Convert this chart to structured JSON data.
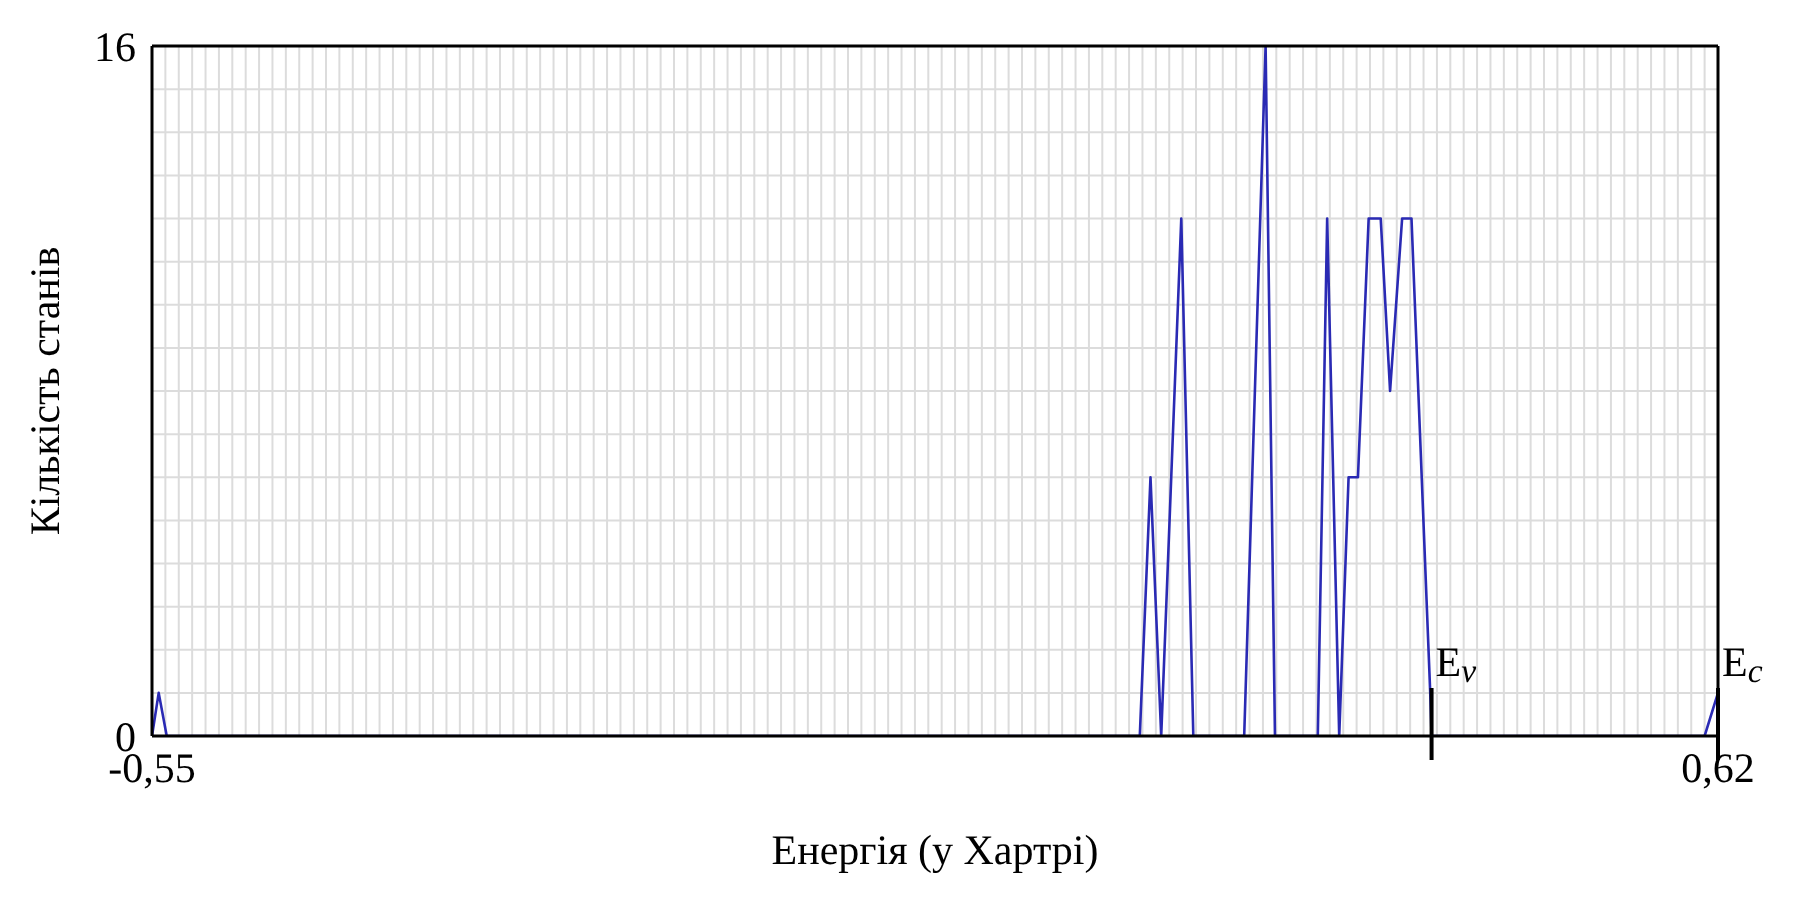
{
  "chart_data": {
    "type": "line",
    "xlabel": "Енергія (у Хартрі)",
    "ylabel": "Кількість станів",
    "series": [
      {
        "color": "#2a2ab4",
        "x": [
          -0.55,
          -0.545,
          -0.539,
          0.188,
          0.196,
          0.204,
          0.219,
          0.228,
          0.266,
          0.282,
          0.289,
          0.321,
          0.328,
          0.337,
          0.344,
          0.351,
          0.359,
          0.368,
          0.375,
          0.384,
          0.391,
          0.405,
          0.406,
          0.61,
          0.62
        ],
        "values": [
          0,
          1,
          0,
          0,
          6,
          0,
          12,
          0,
          0,
          16,
          0,
          0,
          12,
          0,
          6,
          6,
          12,
          12,
          8,
          12,
          12,
          1,
          0,
          0,
          1
        ]
      }
    ],
    "xlim": [
      -0.55,
      0.62
    ],
    "ylim": [
      0,
      16
    ],
    "xticks": [
      {
        "value": -0.55,
        "label": "-0,55"
      },
      {
        "value": -0.54,
        "label": null
      },
      {
        "value": -0.53,
        "label": null
      },
      {
        "value": -0.52,
        "label": null
      },
      {
        "value": -0.51,
        "label": null
      },
      {
        "value": -0.5,
        "label": null
      },
      {
        "value": -0.49,
        "label": null
      },
      {
        "value": -0.48,
        "label": null
      },
      {
        "value": -0.47,
        "label": null
      },
      {
        "value": -0.46,
        "label": null
      },
      {
        "value": -0.45,
        "label": null
      },
      {
        "value": -0.44,
        "label": null
      },
      {
        "value": -0.43,
        "label": null
      },
      {
        "value": -0.42,
        "label": null
      },
      {
        "value": -0.41,
        "label": null
      },
      {
        "value": -0.4,
        "label": null
      },
      {
        "value": -0.39,
        "label": null
      },
      {
        "value": -0.38,
        "label": null
      },
      {
        "value": -0.37,
        "label": null
      },
      {
        "value": -0.36,
        "label": null
      },
      {
        "value": -0.35,
        "label": null
      },
      {
        "value": -0.34,
        "label": null
      },
      {
        "value": -0.33,
        "label": null
      },
      {
        "value": -0.32,
        "label": null
      },
      {
        "value": -0.31,
        "label": null
      },
      {
        "value": -0.3,
        "label": null
      },
      {
        "value": -0.29,
        "label": null
      },
      {
        "value": -0.28,
        "label": null
      },
      {
        "value": -0.27,
        "label": null
      },
      {
        "value": -0.26,
        "label": null
      },
      {
        "value": -0.25,
        "label": null
      },
      {
        "value": -0.24,
        "label": null
      },
      {
        "value": -0.23,
        "label": null
      },
      {
        "value": -0.22,
        "label": null
      },
      {
        "value": -0.21,
        "label": null
      },
      {
        "value": -0.2,
        "label": null
      },
      {
        "value": -0.19,
        "label": null
      },
      {
        "value": -0.18,
        "label": null
      },
      {
        "value": -0.17,
        "label": null
      },
      {
        "value": -0.16,
        "label": null
      },
      {
        "value": -0.15,
        "label": null
      },
      {
        "value": -0.14,
        "label": null
      },
      {
        "value": -0.13,
        "label": null
      },
      {
        "value": -0.12,
        "label": null
      },
      {
        "value": -0.11,
        "label": null
      },
      {
        "value": -0.1,
        "label": null
      },
      {
        "value": -0.09,
        "label": null
      },
      {
        "value": -0.08,
        "label": null
      },
      {
        "value": -0.07,
        "label": null
      },
      {
        "value": -0.06,
        "label": null
      },
      {
        "value": -0.05,
        "label": null
      },
      {
        "value": -0.04,
        "label": null
      },
      {
        "value": -0.03,
        "label": null
      },
      {
        "value": -0.02,
        "label": null
      },
      {
        "value": -0.01,
        "label": null
      },
      {
        "value": 0,
        "label": null
      },
      {
        "value": 0.01,
        "label": null
      },
      {
        "value": 0.02,
        "label": null
      },
      {
        "value": 0.03,
        "label": null
      },
      {
        "value": 0.04,
        "label": null
      },
      {
        "value": 0.05,
        "label": null
      },
      {
        "value": 0.06,
        "label": null
      },
      {
        "value": 0.07,
        "label": null
      },
      {
        "value": 0.08,
        "label": null
      },
      {
        "value": 0.09,
        "label": null
      },
      {
        "value": 0.1,
        "label": null
      },
      {
        "value": 0.11,
        "label": null
      },
      {
        "value": 0.12,
        "label": null
      },
      {
        "value": 0.13,
        "label": null
      },
      {
        "value": 0.14,
        "label": null
      },
      {
        "value": 0.15,
        "label": null
      },
      {
        "value": 0.16,
        "label": null
      },
      {
        "value": 0.17,
        "label": null
      },
      {
        "value": 0.18,
        "label": null
      },
      {
        "value": 0.19,
        "label": null
      },
      {
        "value": 0.2,
        "label": null
      },
      {
        "value": 0.21,
        "label": null
      },
      {
        "value": 0.22,
        "label": null
      },
      {
        "value": 0.23,
        "label": null
      },
      {
        "value": 0.24,
        "label": null
      },
      {
        "value": 0.25,
        "label": null
      },
      {
        "value": 0.26,
        "label": null
      },
      {
        "value": 0.27,
        "label": null
      },
      {
        "value": 0.28,
        "label": null
      },
      {
        "value": 0.29,
        "label": null
      },
      {
        "value": 0.3,
        "label": null
      },
      {
        "value": 0.31,
        "label": null
      },
      {
        "value": 0.32,
        "label": null
      },
      {
        "value": 0.33,
        "label": null
      },
      {
        "value": 0.34,
        "label": null
      },
      {
        "value": 0.35,
        "label": null
      },
      {
        "value": 0.36,
        "label": null
      },
      {
        "value": 0.37,
        "label": null
      },
      {
        "value": 0.38,
        "label": null
      },
      {
        "value": 0.39,
        "label": null
      },
      {
        "value": 0.4,
        "label": null
      },
      {
        "value": 0.41,
        "label": null
      },
      {
        "value": 0.42,
        "label": null
      },
      {
        "value": 0.43,
        "label": null
      },
      {
        "value": 0.44,
        "label": null
      },
      {
        "value": 0.45,
        "label": null
      },
      {
        "value": 0.46,
        "label": null
      },
      {
        "value": 0.47,
        "label": null
      },
      {
        "value": 0.48,
        "label": null
      },
      {
        "value": 0.49,
        "label": null
      },
      {
        "value": 0.5,
        "label": null
      },
      {
        "value": 0.51,
        "label": null
      },
      {
        "value": 0.52,
        "label": null
      },
      {
        "value": 0.53,
        "label": null
      },
      {
        "value": 0.54,
        "label": null
      },
      {
        "value": 0.55,
        "label": null
      },
      {
        "value": 0.56,
        "label": null
      },
      {
        "value": 0.57,
        "label": null
      },
      {
        "value": 0.58,
        "label": null
      },
      {
        "value": 0.59,
        "label": null
      },
      {
        "value": 0.6,
        "label": null
      },
      {
        "value": 0.61,
        "label": null
      },
      {
        "value": 0.62,
        "label": "0,62"
      }
    ],
    "yticks": [
      0,
      {
        "value": 1,
        "label": null
      },
      {
        "value": 2,
        "label": null
      },
      {
        "value": 3,
        "label": null
      },
      {
        "value": 4,
        "label": null
      },
      {
        "value": 5,
        "label": null
      },
      {
        "value": 6,
        "label": null
      },
      {
        "value": 7,
        "label": null
      },
      {
        "value": 8,
        "label": null
      },
      {
        "value": 9,
        "label": null
      },
      {
        "value": 10,
        "label": null
      },
      {
        "value": 11,
        "label": null
      },
      {
        "value": 12,
        "label": null
      },
      {
        "value": 13,
        "label": null
      },
      {
        "value": 14,
        "label": null
      },
      {
        "value": 15,
        "label": null
      },
      16
    ],
    "grid": true,
    "marker": "none",
    "line_style": "solid",
    "ref_lines": [
      {
        "axis": "x",
        "value": 0.406,
        "label": "E$_{v}$",
        "color": "#000000"
      },
      {
        "axis": "x",
        "value": 0.62,
        "label": "E$_{c}$",
        "color": "#000000"
      }
    ]
  }
}
